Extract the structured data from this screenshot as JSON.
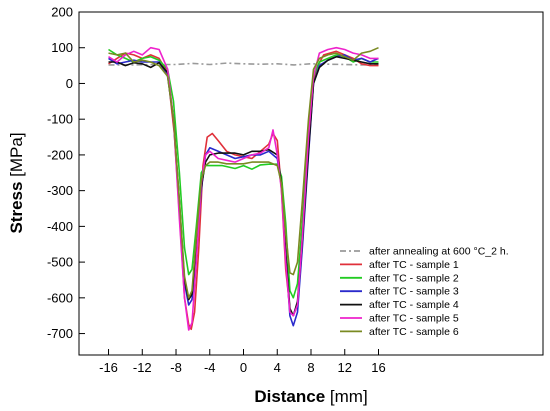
{
  "chart_data": {
    "type": "line",
    "xlabel": {
      "bold": "Distance",
      "unit": " [mm]"
    },
    "ylabel": {
      "bold": "Stress",
      "unit": " [MPa]"
    },
    "xlim": [
      -19.5,
      35.5
    ],
    "ylim": [
      -760,
      200
    ],
    "xticks": [
      -16,
      -12,
      -8,
      -4,
      0,
      4,
      8,
      12,
      16
    ],
    "yticks": [
      200,
      100,
      0,
      -100,
      -200,
      -300,
      -400,
      -500,
      -600,
      -700
    ],
    "legend_position": "bottom-right",
    "grid": false,
    "series": [
      {
        "name": "after annealing at 600 °C_2 h.",
        "color": "#9a9a9a",
        "dash": "dashdot",
        "points": [
          [
            -16,
            52
          ],
          [
            -13,
            52
          ],
          [
            -10,
            53
          ],
          [
            -8,
            53
          ],
          [
            -6,
            56
          ],
          [
            -4,
            53
          ],
          [
            -2,
            57
          ],
          [
            0,
            55
          ],
          [
            2,
            54
          ],
          [
            4,
            55
          ],
          [
            6,
            52
          ],
          [
            8,
            55
          ],
          [
            10,
            54
          ],
          [
            12,
            53
          ],
          [
            14,
            52
          ],
          [
            16,
            53
          ]
        ]
      },
      {
        "name": "after TC - sample 1",
        "color": "#e0303a",
        "points": [
          [
            -16,
            55
          ],
          [
            -15,
            70
          ],
          [
            -14,
            85
          ],
          [
            -13,
            80
          ],
          [
            -12,
            70
          ],
          [
            -11,
            80
          ],
          [
            -10,
            70
          ],
          [
            -9,
            30
          ],
          [
            -8.2,
            -140
          ],
          [
            -7.5,
            -400
          ],
          [
            -7,
            -600
          ],
          [
            -6.5,
            -675
          ],
          [
            -6.2,
            -688
          ],
          [
            -5.8,
            -640
          ],
          [
            -5.3,
            -460
          ],
          [
            -4.8,
            -230
          ],
          [
            -4.3,
            -150
          ],
          [
            -3.7,
            -140
          ],
          [
            -3,
            -160
          ],
          [
            -2,
            -190
          ],
          [
            -1,
            -200
          ],
          [
            0,
            -205
          ],
          [
            1,
            -210
          ],
          [
            2,
            -190
          ],
          [
            3,
            -170
          ],
          [
            3.5,
            -140
          ],
          [
            4,
            -160
          ],
          [
            4.5,
            -300
          ],
          [
            5,
            -520
          ],
          [
            5.5,
            -630
          ],
          [
            5.9,
            -650
          ],
          [
            6.4,
            -620
          ],
          [
            6.9,
            -420
          ],
          [
            7.5,
            -200
          ],
          [
            8.2,
            0
          ],
          [
            8.8,
            50
          ],
          [
            9.5,
            80
          ],
          [
            11,
            90
          ],
          [
            12,
            80
          ],
          [
            13,
            70
          ],
          [
            14,
            55
          ],
          [
            15,
            50
          ],
          [
            16,
            50
          ]
        ]
      },
      {
        "name": "after TC - sample 2",
        "color": "#22cc22",
        "points": [
          [
            -16,
            95
          ],
          [
            -15,
            80
          ],
          [
            -14,
            70
          ],
          [
            -13,
            60
          ],
          [
            -12,
            70
          ],
          [
            -11,
            75
          ],
          [
            -10,
            65
          ],
          [
            -9,
            40
          ],
          [
            -8.3,
            -50
          ],
          [
            -7.6,
            -250
          ],
          [
            -7,
            -460
          ],
          [
            -6.5,
            -535
          ],
          [
            -6.1,
            -520
          ],
          [
            -5.6,
            -400
          ],
          [
            -5,
            -250
          ],
          [
            -4.5,
            -230
          ],
          [
            -3.5,
            -230
          ],
          [
            -2.5,
            -230
          ],
          [
            -1,
            -238
          ],
          [
            0,
            -230
          ],
          [
            1,
            -240
          ],
          [
            2,
            -228
          ],
          [
            3,
            -226
          ],
          [
            4,
            -226
          ],
          [
            4.5,
            -260
          ],
          [
            5,
            -390
          ],
          [
            5.5,
            -580
          ],
          [
            5.9,
            -600
          ],
          [
            6.4,
            -560
          ],
          [
            7,
            -380
          ],
          [
            7.7,
            -150
          ],
          [
            8.3,
            20
          ],
          [
            9,
            60
          ],
          [
            10,
            70
          ],
          [
            11,
            80
          ],
          [
            12,
            75
          ],
          [
            13,
            60
          ],
          [
            14,
            70
          ],
          [
            15,
            60
          ],
          [
            16,
            60
          ]
        ]
      },
      {
        "name": "after TC - sample 3",
        "color": "#2a2acc",
        "points": [
          [
            -16,
            70
          ],
          [
            -15,
            55
          ],
          [
            -14,
            60
          ],
          [
            -13,
            65
          ],
          [
            -12,
            60
          ],
          [
            -11,
            60
          ],
          [
            -10,
            60
          ],
          [
            -9,
            20
          ],
          [
            -8.3,
            -100
          ],
          [
            -7.6,
            -350
          ],
          [
            -7,
            -560
          ],
          [
            -6.5,
            -620
          ],
          [
            -6.1,
            -605
          ],
          [
            -5.6,
            -470
          ],
          [
            -5,
            -300
          ],
          [
            -4.5,
            -200
          ],
          [
            -4,
            -180
          ],
          [
            -3,
            -190
          ],
          [
            -2,
            -200
          ],
          [
            -1,
            -210
          ],
          [
            0,
            -205
          ],
          [
            1,
            -200
          ],
          [
            2,
            -200
          ],
          [
            3,
            -190
          ],
          [
            4,
            -210
          ],
          [
            4.5,
            -290
          ],
          [
            5,
            -480
          ],
          [
            5.5,
            -650
          ],
          [
            5.9,
            -678
          ],
          [
            6.4,
            -640
          ],
          [
            7,
            -450
          ],
          [
            7.7,
            -200
          ],
          [
            8.3,
            0
          ],
          [
            9,
            50
          ],
          [
            10,
            65
          ],
          [
            11,
            75
          ],
          [
            12,
            80
          ],
          [
            13,
            65
          ],
          [
            14,
            70
          ],
          [
            15,
            60
          ],
          [
            16,
            70
          ]
        ]
      },
      {
        "name": "after TC - sample 4",
        "color": "#111111",
        "points": [
          [
            -16,
            60
          ],
          [
            -15,
            60
          ],
          [
            -14,
            50
          ],
          [
            -13,
            58
          ],
          [
            -12,
            55
          ],
          [
            -11,
            45
          ],
          [
            -10,
            58
          ],
          [
            -9,
            30
          ],
          [
            -8.3,
            -100
          ],
          [
            -7.6,
            -330
          ],
          [
            -7,
            -550
          ],
          [
            -6.5,
            -605
          ],
          [
            -6.1,
            -590
          ],
          [
            -5.6,
            -450
          ],
          [
            -5,
            -290
          ],
          [
            -4.5,
            -220
          ],
          [
            -4,
            -200
          ],
          [
            -3,
            -195
          ],
          [
            -2,
            -195
          ],
          [
            -1,
            -195
          ],
          [
            0,
            -200
          ],
          [
            1,
            -190
          ],
          [
            2,
            -190
          ],
          [
            3,
            -185
          ],
          [
            4,
            -200
          ],
          [
            4.5,
            -280
          ],
          [
            5,
            -470
          ],
          [
            5.5,
            -630
          ],
          [
            5.9,
            -650
          ],
          [
            6.4,
            -610
          ],
          [
            7,
            -430
          ],
          [
            7.7,
            -190
          ],
          [
            8.3,
            0
          ],
          [
            9,
            45
          ],
          [
            10,
            65
          ],
          [
            11,
            75
          ],
          [
            12,
            70
          ],
          [
            13,
            65
          ],
          [
            14,
            60
          ],
          [
            15,
            55
          ],
          [
            16,
            55
          ]
        ]
      },
      {
        "name": "after TC - sample 5",
        "color": "#ee22cc",
        "points": [
          [
            -16,
            75
          ],
          [
            -15,
            60
          ],
          [
            -14,
            80
          ],
          [
            -13,
            90
          ],
          [
            -12,
            80
          ],
          [
            -11,
            100
          ],
          [
            -10,
            95
          ],
          [
            -9,
            40
          ],
          [
            -8.3,
            -100
          ],
          [
            -7.6,
            -380
          ],
          [
            -7,
            -600
          ],
          [
            -6.5,
            -690
          ],
          [
            -6.1,
            -670
          ],
          [
            -5.6,
            -500
          ],
          [
            -5,
            -280
          ],
          [
            -4.5,
            -200
          ],
          [
            -4,
            -190
          ],
          [
            -3,
            -210
          ],
          [
            -2,
            -215
          ],
          [
            -1,
            -220
          ],
          [
            0,
            -210
          ],
          [
            1,
            -200
          ],
          [
            2,
            -195
          ],
          [
            3,
            -180
          ],
          [
            3.5,
            -130
          ],
          [
            4,
            -200
          ],
          [
            4.5,
            -300
          ],
          [
            5,
            -500
          ],
          [
            5.5,
            -640
          ],
          [
            5.9,
            -650
          ],
          [
            6.4,
            -620
          ],
          [
            7,
            -420
          ],
          [
            7.7,
            -150
          ],
          [
            8.3,
            20
          ],
          [
            9,
            85
          ],
          [
            10,
            95
          ],
          [
            11,
            100
          ],
          [
            12,
            95
          ],
          [
            13,
            85
          ],
          [
            14,
            80
          ],
          [
            15,
            70
          ],
          [
            16,
            70
          ]
        ]
      },
      {
        "name": "after TC - sample 6",
        "color": "#7a8a22",
        "points": [
          [
            -16,
            85
          ],
          [
            -15,
            80
          ],
          [
            -14,
            85
          ],
          [
            -13,
            60
          ],
          [
            -12,
            65
          ],
          [
            -11,
            60
          ],
          [
            -10,
            50
          ],
          [
            -9,
            20
          ],
          [
            -8.3,
            -100
          ],
          [
            -7.6,
            -330
          ],
          [
            -7,
            -540
          ],
          [
            -6.5,
            -600
          ],
          [
            -6.1,
            -580
          ],
          [
            -5.6,
            -430
          ],
          [
            -5,
            -270
          ],
          [
            -4.5,
            -230
          ],
          [
            -4,
            -220
          ],
          [
            -3,
            -220
          ],
          [
            -2,
            -225
          ],
          [
            -1,
            -225
          ],
          [
            0,
            -225
          ],
          [
            1,
            -220
          ],
          [
            2,
            -220
          ],
          [
            3,
            -220
          ],
          [
            4,
            -230
          ],
          [
            4.5,
            -280
          ],
          [
            5,
            -420
          ],
          [
            5.5,
            -530
          ],
          [
            5.9,
            -535
          ],
          [
            6.4,
            -500
          ],
          [
            7,
            -320
          ],
          [
            7.7,
            -100
          ],
          [
            8.3,
            40
          ],
          [
            9,
            70
          ],
          [
            10,
            80
          ],
          [
            11,
            85
          ],
          [
            12,
            75
          ],
          [
            13,
            65
          ],
          [
            14,
            85
          ],
          [
            15,
            90
          ],
          [
            16,
            100
          ]
        ]
      }
    ]
  }
}
